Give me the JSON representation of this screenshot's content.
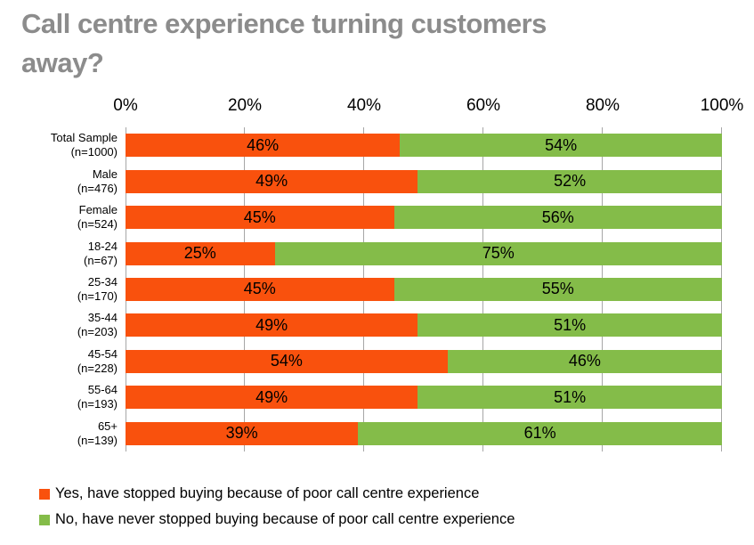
{
  "chart_data": {
    "type": "bar",
    "orientation": "horizontal-stacked",
    "title": "Call centre experience turning customers away?",
    "title_color": "#8C8C8C",
    "categories": [
      {
        "label": "Total Sample",
        "n": "(n=1000)"
      },
      {
        "label": "Male",
        "n": "(n=476)"
      },
      {
        "label": "Female",
        "n": "(n=524)"
      },
      {
        "label": "18-24",
        "n": "(n=67)"
      },
      {
        "label": "25-34",
        "n": "(n=170)"
      },
      {
        "label": "35-44",
        "n": "(n=203)"
      },
      {
        "label": "45-54",
        "n": "(n=228)"
      },
      {
        "label": "55-64",
        "n": "(n=193)"
      },
      {
        "label": "65+",
        "n": "(n=139)"
      }
    ],
    "series": [
      {
        "name": "Yes, have stopped buying because of poor call centre experience",
        "color": "#F9510D",
        "values": [
          46,
          49,
          45,
          25,
          45,
          49,
          54,
          49,
          39
        ]
      },
      {
        "name": "No, have never stopped buying because of poor call centre experience",
        "color": "#84BC49",
        "values": [
          54,
          52,
          56,
          75,
          55,
          51,
          46,
          51,
          61
        ]
      }
    ],
    "data_label_suffix": "%",
    "x_ticks": [
      "0%",
      "20%",
      "40%",
      "60%",
      "80%",
      "100%"
    ],
    "xlim": [
      0,
      100
    ],
    "grid": true,
    "gridline_color": "#A6A6A6",
    "legend_position": "bottom-left"
  }
}
